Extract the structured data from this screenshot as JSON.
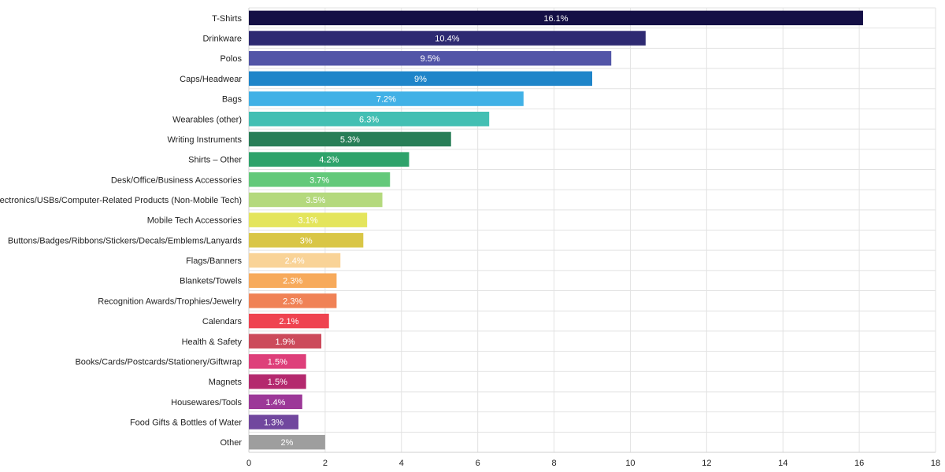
{
  "chart_data": {
    "type": "bar",
    "orientation": "horizontal",
    "title": "",
    "xlabel": "",
    "ylabel": "",
    "xlim": [
      0,
      18
    ],
    "x_ticks": [
      0,
      2,
      4,
      6,
      8,
      10,
      12,
      14,
      16,
      18
    ],
    "grid": true,
    "legend": "none",
    "categories": [
      "T-Shirts",
      "Drinkware",
      "Polos",
      "Caps/Headwear",
      "Bags",
      "Wearables (other)",
      "Writing Instruments",
      "Shirts – Other",
      "Desk/Office/Business Accessories",
      "Electronics/USBs/Computer-Related Products (Non-Mobile Tech)",
      "Mobile Tech Accessories",
      "Buttons/Badges/Ribbons/Stickers/Decals/Emblems/Lanyards",
      "Flags/Banners",
      "Blankets/Towels",
      "Recognition Awards/Trophies/Jewelry",
      "Calendars",
      "Health & Safety",
      "Books/Cards/Postcards/Stationery/Giftwrap",
      "Magnets",
      "Housewares/Tools",
      "Food Gifts & Bottles of Water",
      "Other"
    ],
    "values": [
      16.1,
      10.4,
      9.5,
      9,
      7.2,
      6.3,
      5.3,
      4.2,
      3.7,
      3.5,
      3.1,
      3,
      2.4,
      2.3,
      2.3,
      2.1,
      1.9,
      1.5,
      1.5,
      1.4,
      1.3,
      2
    ],
    "data_labels": [
      "16.1%",
      "10.4%",
      "9.5%",
      "9%",
      "7.2%",
      "6.3%",
      "5.3%",
      "4.2%",
      "3.7%",
      "3.5%",
      "3.1%",
      "3%",
      "2.4%",
      "2.3%",
      "2.3%",
      "2.1%",
      "1.9%",
      "1.5%",
      "1.5%",
      "1.4%",
      "1.3%",
      "2%"
    ],
    "colors": [
      "#140f45",
      "#2e2a72",
      "#5255a7",
      "#1f85c9",
      "#41b1e6",
      "#43bfb3",
      "#287e57",
      "#2fa36b",
      "#63c97a",
      "#b4d97d",
      "#e4e55c",
      "#d9c646",
      "#f9d397",
      "#f7aa5b",
      "#f08256",
      "#ef4350",
      "#cc4a5b",
      "#de3f7a",
      "#b4296e",
      "#9c3898",
      "#71479e",
      "#9e9e9e"
    ]
  }
}
